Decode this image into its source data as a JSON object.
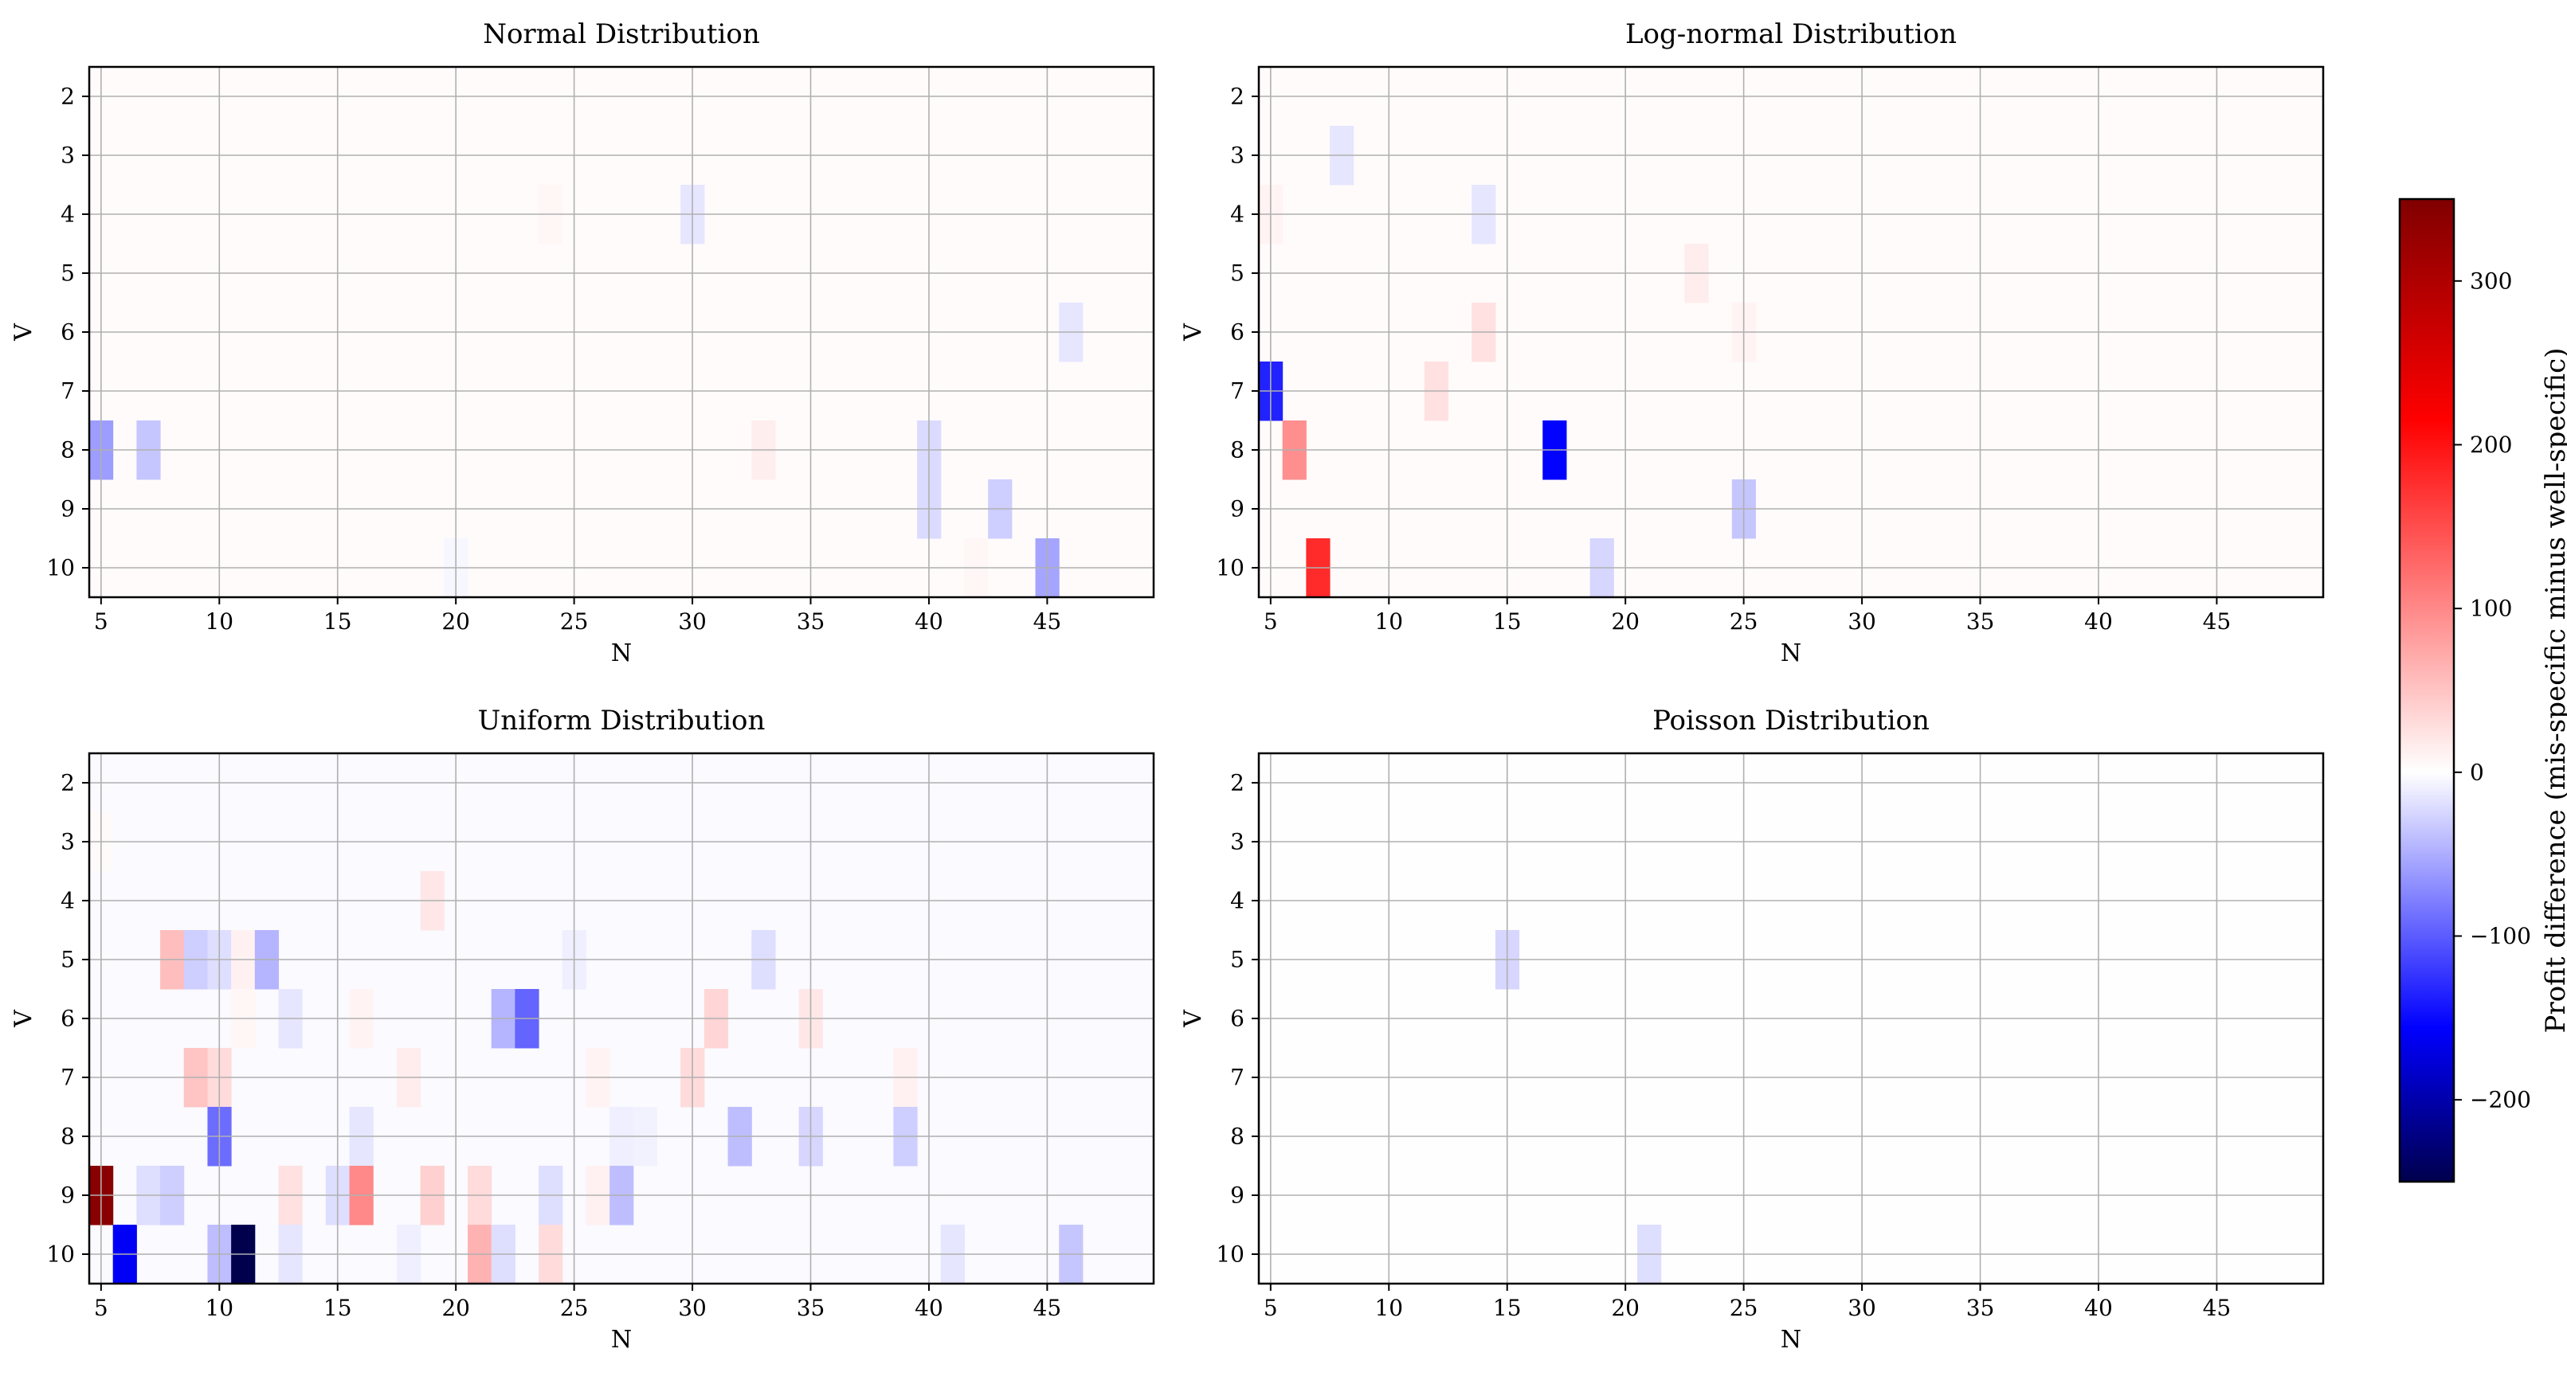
{
  "chart_data": {
    "type": "heatmap",
    "value_metric": "mis-specific minus well-specific profit difference",
    "colorbar": {
      "label": "Profit difference (mis-specific minus well-specific)",
      "colormap": "seismic",
      "vmin": -250,
      "vmax": 350,
      "ticks": [
        -200,
        -100,
        0,
        100,
        200,
        300
      ],
      "tick_labels": [
        "−200",
        "−100",
        "0",
        "100",
        "200",
        "300"
      ],
      "color_stops": [
        {
          "value": -250,
          "color": "#00004d"
        },
        {
          "value": -156,
          "color": "#0000ff"
        },
        {
          "value": 0,
          "color": "#ffffff"
        },
        {
          "value": 215,
          "color": "#ff0000"
        },
        {
          "value": 350,
          "color": "#800000"
        }
      ]
    },
    "panels": [
      {
        "title": "Normal Distribution",
        "xlabel": "N",
        "ylabel": "V",
        "xlim": [
          4.5,
          49.5
        ],
        "ylim": [
          1.5,
          10.5
        ],
        "xticks": [
          5,
          10,
          15,
          20,
          25,
          30,
          35,
          40,
          45
        ],
        "yticks": [
          2,
          3,
          4,
          5,
          6,
          7,
          8,
          9,
          10
        ],
        "background_value": 3,
        "cells": [
          {
            "n": 5,
            "v": 8,
            "value": -60
          },
          {
            "n": 7,
            "v": 8,
            "value": -35
          },
          {
            "n": 20,
            "v": 10,
            "value": -5
          },
          {
            "n": 24,
            "v": 4,
            "value": 8
          },
          {
            "n": 30,
            "v": 4,
            "value": -15
          },
          {
            "n": 33,
            "v": 8,
            "value": 14
          },
          {
            "n": 40,
            "v": 8,
            "value": -22
          },
          {
            "n": 40,
            "v": 9,
            "value": -22
          },
          {
            "n": 42,
            "v": 10,
            "value": 8
          },
          {
            "n": 43,
            "v": 9,
            "value": -30
          },
          {
            "n": 45,
            "v": 10,
            "value": -55
          },
          {
            "n": 46,
            "v": 6,
            "value": -15
          }
        ]
      },
      {
        "title": "Log-normal Distribution",
        "xlabel": "N",
        "ylabel": "V",
        "xlim": [
          4.5,
          49.5
        ],
        "ylim": [
          1.5,
          10.5
        ],
        "xticks": [
          5,
          10,
          15,
          20,
          25,
          30,
          35,
          40,
          45
        ],
        "yticks": [
          2,
          3,
          4,
          5,
          6,
          7,
          8,
          9,
          10
        ],
        "background_value": 3,
        "cells": [
          {
            "n": 5,
            "v": 4,
            "value": 10
          },
          {
            "n": 5,
            "v": 7,
            "value": -135
          },
          {
            "n": 6,
            "v": 8,
            "value": 95
          },
          {
            "n": 7,
            "v": 10,
            "value": 180
          },
          {
            "n": 8,
            "v": 3,
            "value": -15
          },
          {
            "n": 12,
            "v": 7,
            "value": 25
          },
          {
            "n": 14,
            "v": 4,
            "value": -15
          },
          {
            "n": 14,
            "v": 6,
            "value": 25
          },
          {
            "n": 17,
            "v": 8,
            "value": -155
          },
          {
            "n": 19,
            "v": 10,
            "value": -25
          },
          {
            "n": 23,
            "v": 5,
            "value": 15
          },
          {
            "n": 25,
            "v": 6,
            "value": 10
          },
          {
            "n": 25,
            "v": 9,
            "value": -35
          }
        ]
      },
      {
        "title": "Uniform Distribution",
        "xlabel": "N",
        "ylabel": "V",
        "xlim": [
          4.5,
          49.5
        ],
        "ylim": [
          1.5,
          10.5
        ],
        "xticks": [
          5,
          10,
          15,
          20,
          25,
          30,
          35,
          40,
          45
        ],
        "yticks": [
          2,
          3,
          4,
          5,
          6,
          7,
          8,
          9,
          10
        ],
        "background_value": -3,
        "cells": [
          {
            "n": 5,
            "v": 3,
            "value": 4
          },
          {
            "n": 5,
            "v": 9,
            "value": 340
          },
          {
            "n": 6,
            "v": 10,
            "value": -160
          },
          {
            "n": 7,
            "v": 9,
            "value": -20
          },
          {
            "n": 8,
            "v": 5,
            "value": 55
          },
          {
            "n": 8,
            "v": 9,
            "value": -30
          },
          {
            "n": 9,
            "v": 5,
            "value": -30
          },
          {
            "n": 9,
            "v": 7,
            "value": 50
          },
          {
            "n": 10,
            "v": 5,
            "value": -20
          },
          {
            "n": 10,
            "v": 7,
            "value": 30
          },
          {
            "n": 10,
            "v": 8,
            "value": -90
          },
          {
            "n": 10,
            "v": 10,
            "value": -40
          },
          {
            "n": 11,
            "v": 5,
            "value": 12
          },
          {
            "n": 11,
            "v": 6,
            "value": 8
          },
          {
            "n": 11,
            "v": 10,
            "value": -250
          },
          {
            "n": 12,
            "v": 5,
            "value": -45
          },
          {
            "n": 13,
            "v": 6,
            "value": -15
          },
          {
            "n": 13,
            "v": 9,
            "value": 25
          },
          {
            "n": 13,
            "v": 10,
            "value": -15
          },
          {
            "n": 15,
            "v": 9,
            "value": -20
          },
          {
            "n": 16,
            "v": 6,
            "value": 10
          },
          {
            "n": 16,
            "v": 8,
            "value": -15
          },
          {
            "n": 16,
            "v": 9,
            "value": 100
          },
          {
            "n": 18,
            "v": 7,
            "value": 15
          },
          {
            "n": 18,
            "v": 10,
            "value": -10
          },
          {
            "n": 19,
            "v": 4,
            "value": 20
          },
          {
            "n": 19,
            "v": 9,
            "value": 40
          },
          {
            "n": 21,
            "v": 9,
            "value": 30
          },
          {
            "n": 21,
            "v": 10,
            "value": 65
          },
          {
            "n": 22,
            "v": 6,
            "value": -45
          },
          {
            "n": 22,
            "v": 10,
            "value": -20
          },
          {
            "n": 23,
            "v": 6,
            "value": -95
          },
          {
            "n": 24,
            "v": 9,
            "value": -20
          },
          {
            "n": 24,
            "v": 10,
            "value": 30
          },
          {
            "n": 25,
            "v": 5,
            "value": -10
          },
          {
            "n": 26,
            "v": 7,
            "value": 10
          },
          {
            "n": 26,
            "v": 9,
            "value": 12
          },
          {
            "n": 27,
            "v": 8,
            "value": -10
          },
          {
            "n": 27,
            "v": 9,
            "value": -40
          },
          {
            "n": 28,
            "v": 8,
            "value": -8
          },
          {
            "n": 30,
            "v": 7,
            "value": 30
          },
          {
            "n": 31,
            "v": 6,
            "value": 35
          },
          {
            "n": 32,
            "v": 8,
            "value": -40
          },
          {
            "n": 33,
            "v": 5,
            "value": -20
          },
          {
            "n": 35,
            "v": 6,
            "value": 20
          },
          {
            "n": 35,
            "v": 8,
            "value": -25
          },
          {
            "n": 39,
            "v": 7,
            "value": 12
          },
          {
            "n": 39,
            "v": 8,
            "value": -30
          },
          {
            "n": 41,
            "v": 10,
            "value": -15
          },
          {
            "n": 46,
            "v": 10,
            "value": -35
          }
        ]
      },
      {
        "title": "Poisson Distribution",
        "xlabel": "N",
        "ylabel": "V",
        "xlim": [
          4.5,
          49.5
        ],
        "ylim": [
          1.5,
          10.5
        ],
        "xticks": [
          5,
          10,
          15,
          20,
          25,
          30,
          35,
          40,
          45
        ],
        "yticks": [
          2,
          3,
          4,
          5,
          6,
          7,
          8,
          9,
          10
        ],
        "background_value": 1,
        "cells": [
          {
            "n": 15,
            "v": 5,
            "value": -25
          },
          {
            "n": 21,
            "v": 10,
            "value": -20
          }
        ]
      }
    ]
  }
}
